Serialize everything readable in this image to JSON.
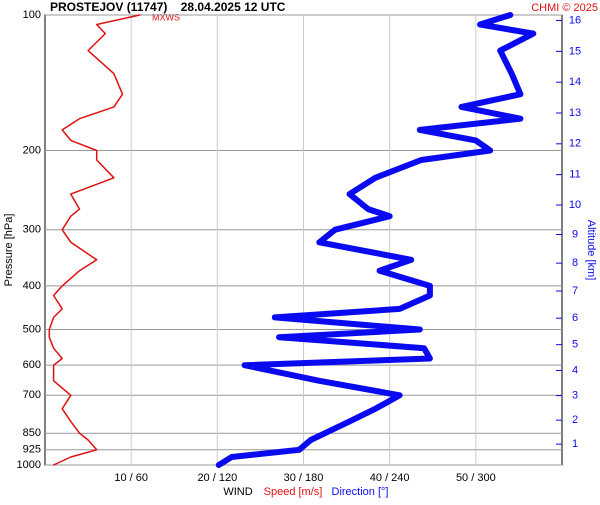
{
  "chart_data": {
    "type": "profile",
    "title": "PROSTEJOV (11747)    28.04.2025 12 UTC",
    "credit": "CHMI © 2025",
    "annotation": "MXWS",
    "ylabel": "Pressure [hPa]",
    "y2label": "Altitude [km]",
    "xlabel": "WIND",
    "xlabel_speed": "Speed [m/s]",
    "xlabel_direction": "Direction [°]",
    "ylog": true,
    "grid": true,
    "ylim": [
      1000,
      100
    ],
    "yticks": [
      100,
      200,
      300,
      400,
      500,
      600,
      700,
      850,
      925,
      1000
    ],
    "y2ticks": [
      1,
      2,
      3,
      4,
      5,
      6,
      7,
      8,
      9,
      10,
      11,
      12,
      13,
      14,
      15,
      16
    ],
    "xlim": [
      0,
      60
    ],
    "xticks": [
      {
        "value": 10,
        "label": "10 / 60"
      },
      {
        "value": 20,
        "label": "20 / 120"
      },
      {
        "value": 30,
        "label": "30 / 180"
      },
      {
        "value": 40,
        "label": "40 / 240"
      },
      {
        "value": 50,
        "label": "50 / 300"
      }
    ],
    "y": [
      1000,
      960,
      925,
      880,
      850,
      800,
      750,
      700,
      650,
      600,
      580,
      550,
      520,
      500,
      470,
      450,
      420,
      400,
      370,
      350,
      320,
      300,
      280,
      270,
      250,
      230,
      210,
      200,
      190,
      180,
      170,
      160,
      150,
      135,
      120,
      110,
      105,
      100
    ],
    "series": [
      {
        "name": "Speed [m/s]",
        "color": "#e01010",
        "width": 1.5,
        "values": [
          1,
          3,
          6,
          5,
          4,
          3,
          2,
          3,
          1,
          1,
          2,
          1,
          0.5,
          0.5,
          1,
          2,
          1,
          2,
          4,
          6,
          3,
          2,
          3,
          4,
          3,
          8,
          6,
          6,
          3,
          2,
          4,
          8,
          9,
          8,
          5,
          7,
          6,
          11
        ]
      },
      {
        "name": "Direction [°]",
        "color": "#0a0af0",
        "width": 6,
        "scale": 6,
        "values": [
          121,
          130,
          177,
          185,
          195,
          212,
          230,
          247,
          191,
          139,
          268,
          264,
          163,
          261,
          160,
          247,
          268,
          268,
          233,
          255,
          191,
          202,
          240,
          225,
          212,
          230,
          262,
          310,
          300,
          261,
          331,
          290,
          331,
          325,
          317,
          340,
          303,
          324
        ]
      }
    ]
  }
}
